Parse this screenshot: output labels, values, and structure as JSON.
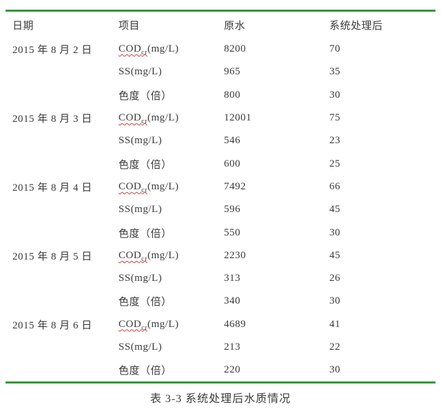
{
  "page": {
    "background": "#ffffff",
    "accent_green": "#2e9b37",
    "text_color": "#3a3a3a",
    "wavy_underline_red": "#cc4040"
  },
  "table": {
    "columns": [
      "日期",
      "项目",
      "原水",
      "系统处理后"
    ],
    "items": {
      "cod": {
        "base": "COD",
        "sub": "cr",
        "unit": "(mg/L)",
        "underline": true
      },
      "ss": {
        "base": "SS",
        "sub": "",
        "unit": "(mg/L)",
        "underline": false
      },
      "chroma": {
        "base": "色度（倍）",
        "sub": "",
        "unit": "",
        "underline": false
      }
    },
    "groups": [
      {
        "date": "2015 年 8 月 2 日",
        "rows": [
          {
            "item": "cod",
            "raw": "8200",
            "treated": "70"
          },
          {
            "item": "ss",
            "raw": "965",
            "treated": "35"
          },
          {
            "item": "chroma",
            "raw": "800",
            "treated": "30"
          }
        ]
      },
      {
        "date": "2015 年 8 月 3 日",
        "rows": [
          {
            "item": "cod",
            "raw": "12001",
            "treated": "75"
          },
          {
            "item": "ss",
            "raw": "546",
            "treated": "23"
          },
          {
            "item": "chroma",
            "raw": "600",
            "treated": "25"
          }
        ]
      },
      {
        "date": "2015 年 8 月 4 日",
        "rows": [
          {
            "item": "cod",
            "raw": "7492",
            "treated": "66"
          },
          {
            "item": "ss",
            "raw": "596",
            "treated": "45"
          },
          {
            "item": "chroma",
            "raw": "550",
            "treated": "30"
          }
        ]
      },
      {
        "date": "2015 年 8 月 5 日",
        "rows": [
          {
            "item": "cod",
            "raw": "2230",
            "treated": "45"
          },
          {
            "item": "ss",
            "raw": "313",
            "treated": "26"
          },
          {
            "item": "chroma",
            "raw": "340",
            "treated": "30"
          }
        ]
      },
      {
        "date": "2015 年 8 月 6 日",
        "rows": [
          {
            "item": "cod",
            "raw": "4689",
            "treated": "41"
          },
          {
            "item": "ss",
            "raw": "213",
            "treated": "22"
          },
          {
            "item": "chroma",
            "raw": "220",
            "treated": "30"
          }
        ]
      }
    ]
  },
  "caption": "表 3-3  系统处理后水质情况"
}
